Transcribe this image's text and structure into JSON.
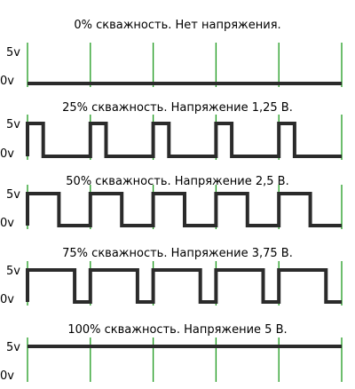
{
  "colors": {
    "wave": "#2b2b2b",
    "grid": "#1e9a1e",
    "background": "#ffffff"
  },
  "diagram": {
    "level_labels": {
      "high": "5v",
      "low": "0v"
    },
    "panels": [
      {
        "title": "0% скважность. Нет напряжения.",
        "duty": 0
      },
      {
        "title": "25% скважность. Напряжение 1,25 В.",
        "duty": 0.25
      },
      {
        "title": "50% скважность. Напряжение 2,5 В.",
        "duty": 0.5
      },
      {
        "title": "75% скважность. Напряжение 3,75 В.",
        "duty": 0.75
      },
      {
        "title": "100% скважность. Напряжение 5 В.",
        "duty": 1
      }
    ],
    "periods": 5
  }
}
